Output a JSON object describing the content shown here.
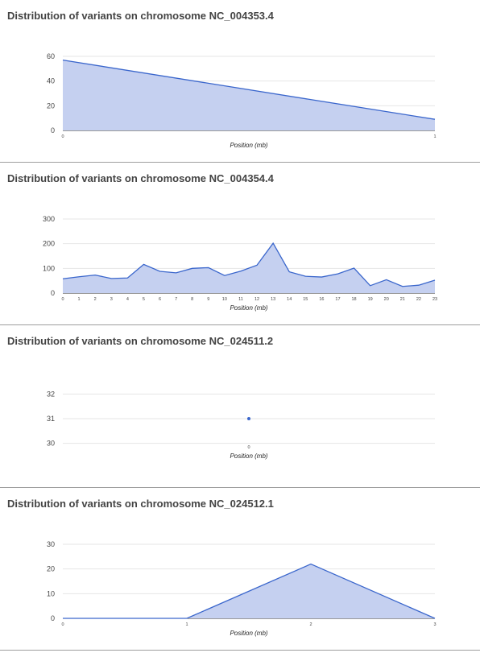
{
  "chart_data": [
    {
      "type": "area",
      "title": "Distribution of variants on chromosome NC_004353.4",
      "xlabel": "Position (mb)",
      "ylabel": "",
      "ylim": [
        0,
        60
      ],
      "y_ticks": [
        0,
        20,
        40,
        60
      ],
      "x_ticks": [
        0,
        1
      ],
      "xlim": [
        0,
        1
      ],
      "grid": true,
      "series": [
        {
          "x": [
            0,
            1
          ],
          "values": [
            57,
            9
          ]
        }
      ]
    },
    {
      "type": "area",
      "title": "Distribution of variants on chromosome NC_004354.4",
      "xlabel": "Position (mb)",
      "ylabel": "",
      "ylim": [
        0,
        300
      ],
      "y_ticks": [
        0,
        100,
        200,
        300
      ],
      "x_ticks": [
        0,
        1,
        2,
        3,
        4,
        5,
        6,
        7,
        8,
        9,
        10,
        11,
        12,
        13,
        14,
        15,
        16,
        17,
        18,
        19,
        20,
        21,
        22,
        23
      ],
      "xlim": [
        0,
        23
      ],
      "grid": true,
      "series": [
        {
          "x": [
            0,
            1,
            2,
            3,
            4,
            5,
            6,
            7,
            8,
            9,
            10,
            11,
            12,
            13,
            14,
            15,
            16,
            17,
            18,
            19,
            20,
            21,
            22,
            23
          ],
          "values": [
            58,
            66,
            73,
            59,
            61,
            116,
            88,
            82,
            100,
            103,
            71,
            89,
            113,
            202,
            86,
            68,
            65,
            78,
            101,
            30,
            54,
            27,
            32,
            52
          ]
        }
      ]
    },
    {
      "type": "scatter",
      "title": "Distribution of variants on chromosome NC_024511.2",
      "xlabel": "Position (mb)",
      "ylabel": "",
      "ylim": [
        29.5,
        32.5
      ],
      "y_ticks": [
        30,
        31,
        32
      ],
      "x_ticks": [
        0
      ],
      "xlim": [
        -1,
        1
      ],
      "grid": true,
      "series": [
        {
          "x": [
            0
          ],
          "values": [
            31
          ]
        }
      ]
    },
    {
      "type": "area",
      "title": "Distribution of variants on chromosome NC_024512.1",
      "xlabel": "Position (mb)",
      "ylabel": "",
      "ylim": [
        0,
        30
      ],
      "y_ticks": [
        0,
        10,
        20,
        30
      ],
      "x_ticks": [
        0,
        1,
        2,
        3
      ],
      "xlim": [
        0,
        3
      ],
      "grid": true,
      "series": [
        {
          "x": [
            0,
            1,
            2,
            3
          ],
          "values": [
            0,
            0,
            22,
            0
          ]
        }
      ]
    }
  ]
}
